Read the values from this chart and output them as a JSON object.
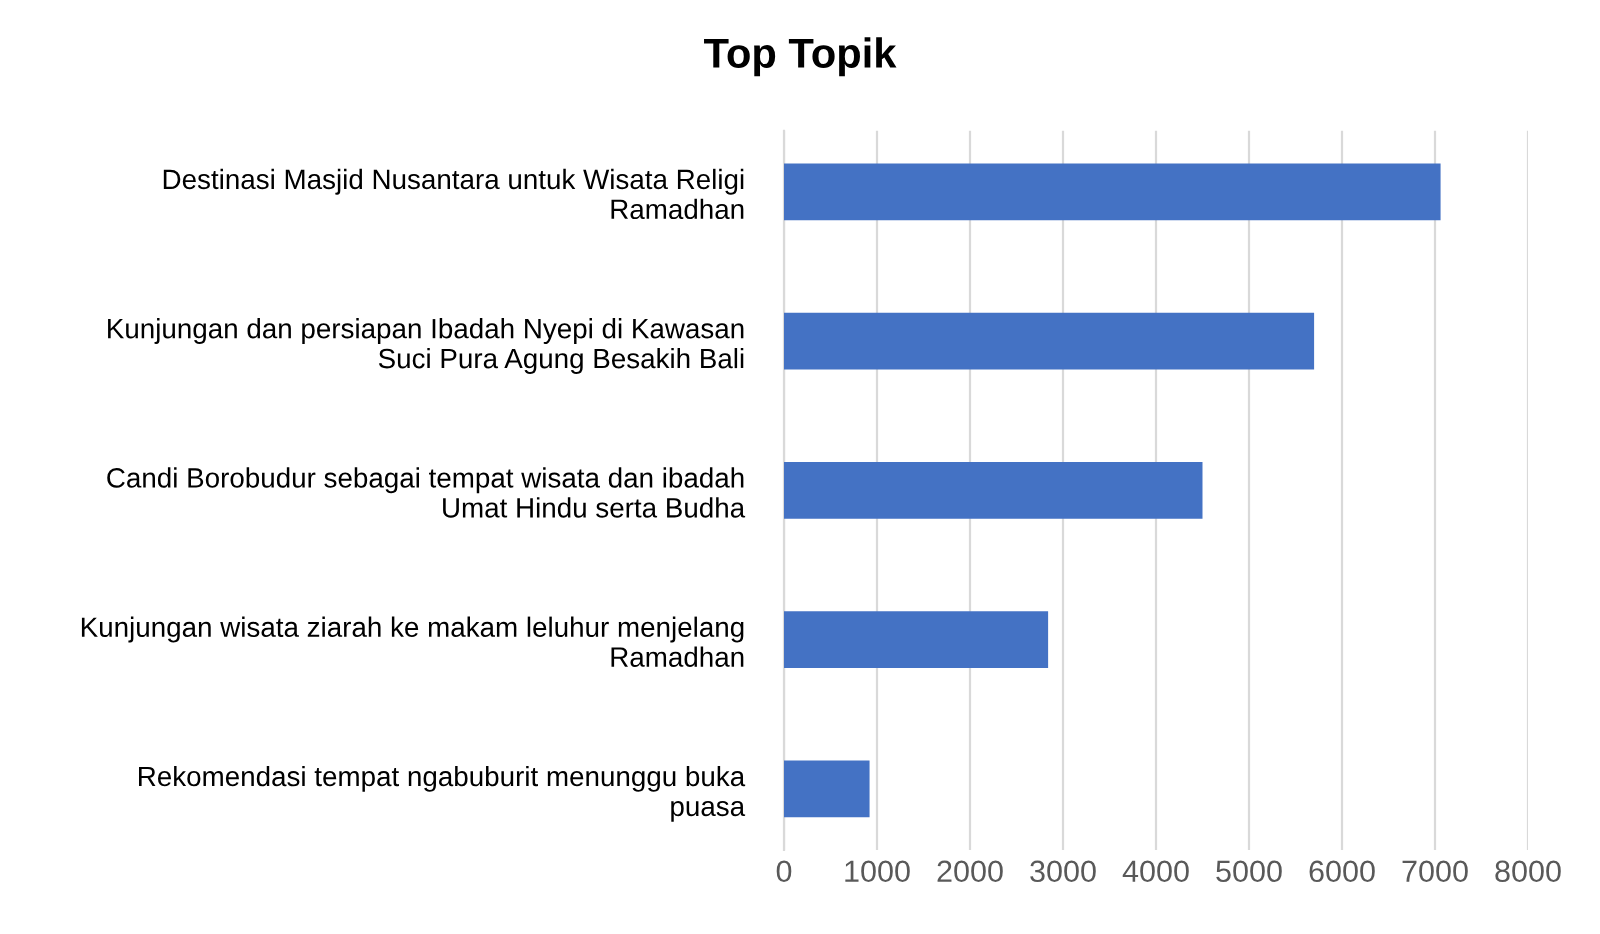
{
  "chart_data": {
    "type": "bar",
    "orientation": "horizontal",
    "title": "Top Topik",
    "categories": [
      "Destinasi Masjid Nusantara untuk Wisata Religi\nRamadhan",
      "Kunjungan dan persiapan Ibadah Nyepi di Kawasan\nSuci Pura Agung Besakih Bali",
      "Candi Borobudur sebagai tempat wisata dan ibadah\nUmat Hindu serta Budha",
      "Kunjungan wisata ziarah ke makam leluhur menjelang\nRamadhan",
      "Rekomendasi tempat ngabuburit menunggu buka\npuasa"
    ],
    "values": [
      7060,
      5700,
      4500,
      2840,
      920
    ],
    "color": "#4472c4",
    "xlim": [
      0,
      8000
    ],
    "xticks": [
      0,
      1000,
      2000,
      3000,
      4000,
      5000,
      6000,
      7000,
      8000
    ],
    "grid": "x"
  }
}
